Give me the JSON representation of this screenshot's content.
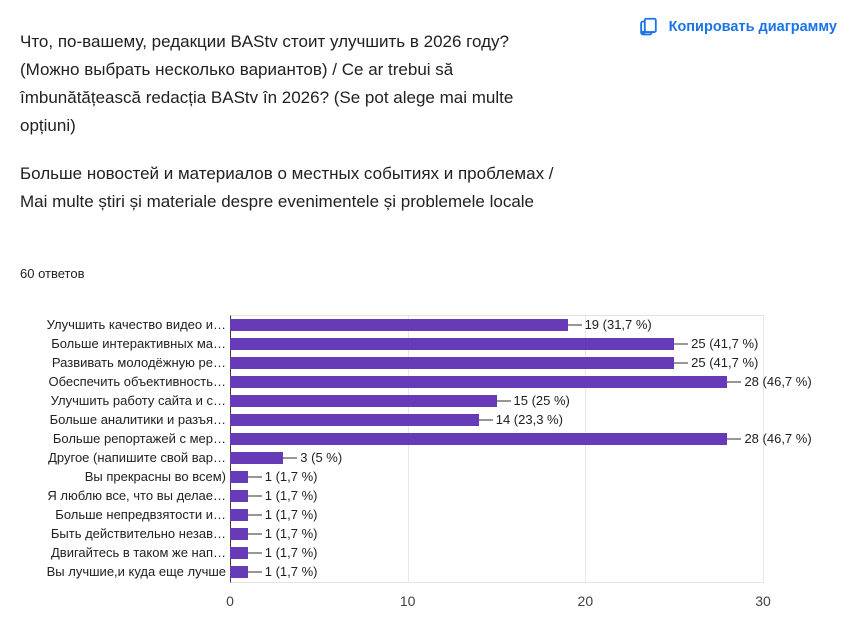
{
  "header": {
    "copy_button_label": "Копировать диаграмму"
  },
  "question": {
    "title": "Что, по-вашему, редакции BAStv стоит улучшить в 2026 году? (Можно выбрать несколько вариантов) / Ce ar trebui să îmbunătățească redacția BAStv în 2026? (Se pot alege mai multe opțiuni)",
    "subtitle": "Больше новостей и материалов о местных событиях и проблемах / Mai multe știri și materiale despre evenimentele și problemele locale",
    "responses_label": "60 ответов"
  },
  "chart_data": {
    "type": "bar",
    "orientation": "horizontal",
    "title": "",
    "xlabel": "",
    "ylabel": "",
    "xlim": [
      0,
      30
    ],
    "x_ticks": [
      "0",
      "10",
      "20",
      "30"
    ],
    "grid": true,
    "legend": false,
    "bar_color": "#673ab7",
    "categories": [
      "Улучшить качество видео и…",
      "Больше интерактивных ма…",
      "Развивать молодёжную ре…",
      "Обеспечить объективность…",
      "Улучшить работу сайта и с…",
      "Больше аналитики и разъя…",
      "Больше репортажей с мер…",
      "Другое (напишите свой вар…",
      "Вы прекрасны во всем)",
      "Я люблю все, что вы делае…",
      "Больше непредвзятости и…",
      "Быть действительно незав…",
      "Двигайтесь в таком же нап…",
      "Вы лучшие,и куда еще лучше"
    ],
    "values": [
      19,
      25,
      25,
      28,
      15,
      14,
      28,
      3,
      1,
      1,
      1,
      1,
      1,
      1
    ],
    "value_labels": [
      "19 (31,7 %)",
      "25 (41,7 %)",
      "25 (41,7 %)",
      "28 (46,7 %)",
      "15 (25 %)",
      "14 (23,3 %)",
      "28 (46,7 %)",
      "3 (5 %)",
      "1 (1,7 %)",
      "1 (1,7 %)",
      "1 (1,7 %)",
      "1 (1,7 %)",
      "1 (1,7 %)",
      "1 (1,7 %)"
    ]
  },
  "colors": {
    "accent_blue": "#1a73e8",
    "bar_purple": "#673ab7"
  }
}
